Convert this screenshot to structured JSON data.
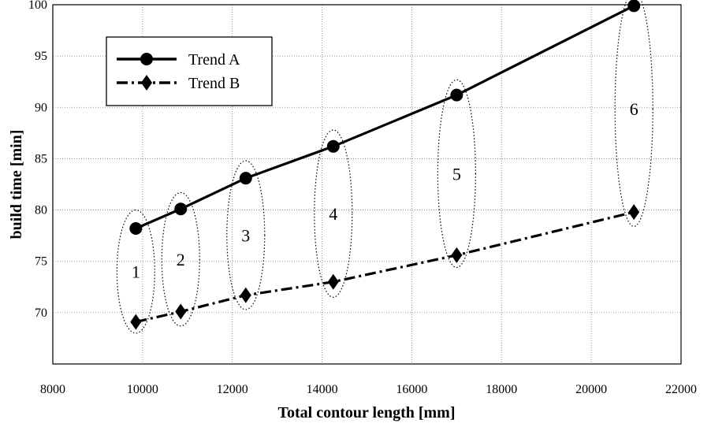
{
  "chart_data": {
    "type": "line",
    "xlabel": "Total contour length [mm]",
    "ylabel": "build time [min]",
    "xlim": [
      8000,
      22000
    ],
    "ylim": [
      65,
      100
    ],
    "x_ticks": [
      8000,
      10000,
      12000,
      14000,
      16000,
      18000,
      20000,
      22000
    ],
    "y_ticks": [
      70,
      75,
      80,
      85,
      90,
      95,
      100
    ],
    "grid": true,
    "legend_position": "top-left",
    "series": [
      {
        "name": "Trend A",
        "marker": "circle",
        "line_style": "solid",
        "color": "#000000",
        "x": [
          9850,
          10850,
          12300,
          14250,
          17000,
          20950
        ],
        "y": [
          78.2,
          80.1,
          83.1,
          86.2,
          91.2,
          99.9
        ]
      },
      {
        "name": "Trend B",
        "marker": "diamond",
        "line_style": "dash-dot",
        "color": "#000000",
        "x": [
          9850,
          10850,
          12300,
          14250,
          17000,
          20950
        ],
        "y": [
          69.1,
          70.1,
          71.7,
          73.0,
          75.6,
          79.8
        ]
      }
    ],
    "groups": [
      {
        "label": "1",
        "x": 9850,
        "y_top": 80,
        "y_bottom": 68
      },
      {
        "label": "2",
        "x": 10850,
        "y_top": 81.7,
        "y_bottom": 68.7
      },
      {
        "label": "3",
        "x": 12300,
        "y_top": 84.8,
        "y_bottom": 70.3
      },
      {
        "label": "4",
        "x": 14250,
        "y_top": 87.8,
        "y_bottom": 71.5
      },
      {
        "label": "5",
        "x": 17000,
        "y_top": 92.7,
        "y_bottom": 74.4
      },
      {
        "label": "6",
        "x": 20950,
        "y_top": 101.3,
        "y_bottom": 78.4
      }
    ]
  }
}
